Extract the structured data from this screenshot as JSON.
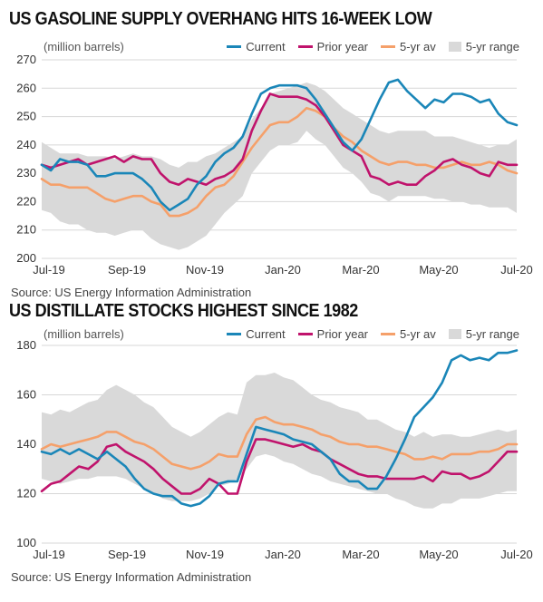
{
  "chart_data": [
    {
      "type": "line",
      "title": "US GASOLINE SUPPLY OVERHANG HITS 16-WEEK LOW",
      "unit_label": "(million barrels)",
      "source": "Source: US Energy Information Administration",
      "x_tick_labels": [
        "Jul-19",
        "Sep-19",
        "Nov-19",
        "Jan-20",
        "Mar-20",
        "May-20",
        "Jul-20"
      ],
      "ylim": [
        200,
        270
      ],
      "y_ticks": [
        200,
        210,
        220,
        230,
        240,
        250,
        260,
        270
      ],
      "grid": true,
      "legend": [
        "Current",
        "Prior year",
        "5-yr av",
        "5-yr range"
      ],
      "legend_position": "top-right",
      "colors": {
        "Current": "#1a86b8",
        "Prior year": "#c0136c",
        "5-yr av": "#f5a06a",
        "5-yr range": "#d9d9d9"
      },
      "series": [
        {
          "name": "Current",
          "values": [
            233,
            231,
            235,
            234,
            234,
            233,
            229,
            229,
            230,
            230,
            230,
            228,
            225,
            220,
            217,
            219,
            221,
            226,
            229,
            234,
            237,
            239,
            243,
            251,
            258,
            260,
            261,
            261,
            261,
            260,
            256,
            251,
            246,
            241,
            238,
            242,
            249,
            256,
            262,
            263,
            259,
            256,
            253,
            256,
            255,
            258,
            258,
            257,
            255,
            256,
            251,
            248,
            247
          ]
        },
        {
          "name": "Prior year",
          "values": [
            233,
            232,
            233,
            234,
            235,
            233,
            234,
            235,
            236,
            234,
            236,
            235,
            235,
            230,
            227,
            226,
            228,
            227,
            226,
            228,
            229,
            231,
            235,
            245,
            252,
            258,
            257,
            257,
            257,
            256,
            254,
            250,
            245,
            240,
            238,
            236,
            229,
            228,
            226,
            227,
            226,
            226,
            229,
            231,
            234,
            235,
            233,
            232,
            230,
            229,
            234,
            233,
            233
          ]
        },
        {
          "name": "5-yr av",
          "values": [
            228,
            226,
            226,
            225,
            225,
            225,
            223,
            221,
            220,
            221,
            222,
            222,
            220,
            219,
            215,
            215,
            216,
            218,
            222,
            225,
            226,
            229,
            234,
            239,
            243,
            247,
            248,
            248,
            250,
            253,
            252,
            250,
            246,
            243,
            241,
            238,
            236,
            234,
            233,
            234,
            234,
            233,
            233,
            232,
            232,
            233,
            234,
            233,
            233,
            234,
            233,
            231,
            230
          ]
        },
        {
          "name": "5-yr range min",
          "values": [
            217,
            216,
            213,
            212,
            212,
            210,
            209,
            209,
            208,
            209,
            210,
            210,
            207,
            205,
            204,
            203,
            204,
            206,
            208,
            212,
            216,
            219,
            222,
            230,
            234,
            238,
            240,
            240,
            241,
            245,
            242,
            240,
            236,
            232,
            230,
            227,
            223,
            222,
            220,
            222,
            222,
            222,
            222,
            221,
            221,
            220,
            220,
            219,
            219,
            218,
            218,
            218,
            216
          ]
        },
        {
          "name": "5-yr range max",
          "values": [
            241,
            239,
            237,
            237,
            237,
            236,
            236,
            236,
            235,
            236,
            237,
            236,
            236,
            235,
            233,
            232,
            234,
            234,
            236,
            237,
            239,
            241,
            243,
            249,
            253,
            258,
            259,
            260,
            261,
            262,
            261,
            259,
            256,
            253,
            251,
            249,
            247,
            245,
            244,
            245,
            245,
            245,
            245,
            243,
            243,
            243,
            242,
            241,
            240,
            239,
            240,
            240,
            242
          ]
        }
      ]
    },
    {
      "type": "line",
      "title": "US DISTILLATE STOCKS HIGHEST SINCE 1982",
      "unit_label": "(million barrels)",
      "source": "Source: US Energy Information Administration",
      "x_tick_labels": [
        "Jul-19",
        "Sep-19",
        "Nov-19",
        "Jan-20",
        "Mar-20",
        "May-20",
        "Jul-20"
      ],
      "ylim": [
        100,
        180
      ],
      "y_ticks": [
        100,
        120,
        140,
        160,
        180
      ],
      "grid": true,
      "legend": [
        "Current",
        "Prior year",
        "5-yr av",
        "5-yr range"
      ],
      "legend_position": "top-right",
      "colors": {
        "Current": "#1a86b8",
        "Prior year": "#c0136c",
        "5-yr av": "#f5a06a",
        "5-yr range": "#d9d9d9"
      },
      "series": [
        {
          "name": "Current",
          "values": [
            137,
            136,
            138,
            136,
            138,
            136,
            134,
            137,
            134,
            131,
            126,
            122,
            120,
            119,
            119,
            116,
            115,
            116,
            119,
            124,
            125,
            125,
            136,
            147,
            146,
            145,
            144,
            142,
            141,
            140,
            137,
            134,
            128,
            125,
            125,
            122,
            122,
            127,
            134,
            142,
            151,
            155,
            159,
            165,
            174,
            176,
            174,
            175,
            174,
            177,
            177,
            178
          ]
        },
        {
          "name": "Prior year",
          "values": [
            121,
            124,
            125,
            128,
            131,
            130,
            133,
            139,
            140,
            137,
            135,
            133,
            130,
            126,
            123,
            120,
            120,
            122,
            126,
            124,
            120,
            120,
            133,
            142,
            142,
            141,
            140,
            139,
            140,
            138,
            137,
            134,
            132,
            130,
            128,
            127,
            127,
            126,
            126,
            126,
            126,
            127,
            125,
            129,
            128,
            128,
            126,
            127,
            129,
            133,
            137,
            137
          ]
        },
        {
          "name": "5-yr av",
          "values": [
            138,
            140,
            139,
            140,
            141,
            142,
            143,
            145,
            145,
            143,
            141,
            140,
            138,
            135,
            132,
            131,
            130,
            131,
            133,
            136,
            135,
            135,
            144,
            150,
            151,
            149,
            148,
            148,
            147,
            146,
            144,
            143,
            141,
            140,
            140,
            139,
            139,
            138,
            137,
            136,
            134,
            134,
            135,
            134,
            136,
            136,
            136,
            137,
            137,
            138,
            140,
            140
          ]
        },
        {
          "name": "5-yr range min",
          "values": [
            126,
            125,
            124,
            125,
            126,
            126,
            127,
            127,
            127,
            126,
            124,
            122,
            120,
            118,
            117,
            117,
            117,
            118,
            120,
            123,
            124,
            126,
            130,
            135,
            136,
            135,
            133,
            132,
            130,
            128,
            127,
            125,
            124,
            123,
            122,
            121,
            120,
            120,
            118,
            117,
            115,
            114,
            114,
            116,
            116,
            118,
            118,
            118,
            119,
            120,
            121,
            121
          ]
        },
        {
          "name": "5-yr range max",
          "values": [
            153,
            152,
            154,
            153,
            155,
            157,
            158,
            162,
            164,
            162,
            160,
            157,
            155,
            151,
            147,
            145,
            143,
            145,
            148,
            151,
            153,
            152,
            165,
            168,
            168,
            169,
            167,
            166,
            163,
            160,
            158,
            157,
            155,
            154,
            153,
            150,
            150,
            148,
            146,
            145,
            143,
            145,
            143,
            144,
            144,
            143,
            143,
            144,
            145,
            146,
            145,
            146
          ]
        }
      ]
    }
  ]
}
